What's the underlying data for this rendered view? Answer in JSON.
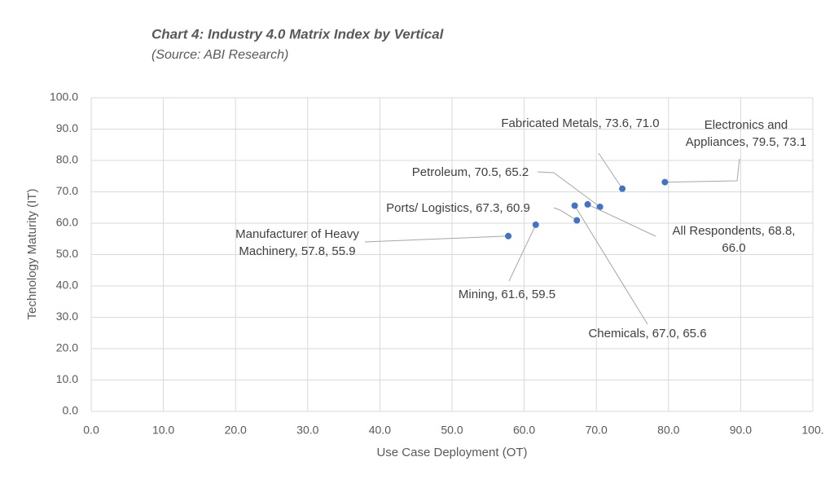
{
  "chart_data": {
    "type": "scatter",
    "title": "Chart 4: Industry 4.0 Matrix Index by Vertical",
    "subtitle": "(Source: ABI Research)",
    "x_label": "Use Case Deployment (OT)",
    "y_label": "Technology Maturity (IT)",
    "x": [
      73.6,
      79.5,
      70.5,
      68.8,
      67.3,
      67.0,
      61.6,
      57.8
    ],
    "values": [
      71.0,
      73.1,
      65.2,
      66.0,
      60.9,
      65.6,
      59.5,
      55.9
    ],
    "value_labels": [
      "Fabricated Metals, 73.6, 71.0",
      "Electronics and Appliances, 79.5, 73.1",
      "Petroleum, 70.5, 65.2",
      "All Respondents, 68.8, 66.0",
      "Ports/ Logistics, 67.3, 60.9",
      "Chemicals, 67.0, 65.6",
      "Mining, 61.6, 59.5",
      "Manufacturer of Heavy Machinery, 57.8, 55.9"
    ],
    "color": "#4472c4",
    "xlim": [
      0,
      100
    ],
    "xticks": [
      {
        "value": 0,
        "label": "0.0"
      },
      {
        "value": 10,
        "label": "10.0"
      },
      {
        "value": 20,
        "label": "20.0"
      },
      {
        "value": 30,
        "label": "30.0"
      },
      {
        "value": 40,
        "label": "40.0"
      },
      {
        "value": 50,
        "label": "50.0"
      },
      {
        "value": 60,
        "label": "60.0"
      },
      {
        "value": 70,
        "label": "70.0"
      },
      {
        "value": 80,
        "label": "80.0"
      },
      {
        "value": 90,
        "label": "90.0"
      },
      {
        "value": 100,
        "label": "100."
      }
    ],
    "ylim": [
      0,
      100
    ],
    "yticks": [
      {
        "value": 0,
        "label": "0.0"
      },
      {
        "value": 10,
        "label": "10.0"
      },
      {
        "value": 20,
        "label": "20.0"
      },
      {
        "value": 30,
        "label": "30.0"
      },
      {
        "value": 40,
        "label": "40.0"
      },
      {
        "value": 50,
        "label": "50.0"
      },
      {
        "value": 60,
        "label": "60.0"
      },
      {
        "value": 70,
        "label": "70.0"
      },
      {
        "value": 80,
        "label": "80.0"
      },
      {
        "value": 90,
        "label": "90.0"
      },
      {
        "value": 100,
        "label": "100.0"
      }
    ],
    "grid": true
  }
}
